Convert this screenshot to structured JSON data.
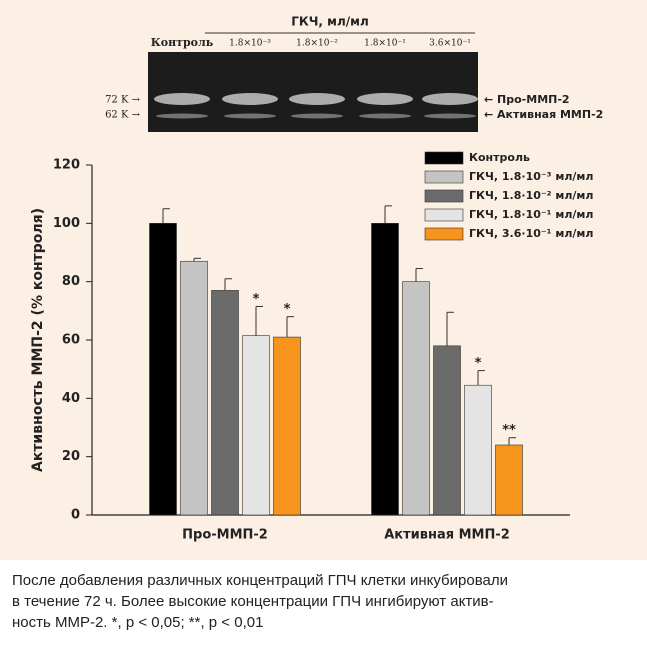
{
  "gel": {
    "title": "ГКЧ, мл/мл",
    "lanes": [
      "Контроль",
      "1.8×10⁻³",
      "1.8×10⁻²",
      "1.8×10⁻¹",
      "3.6×10⁻¹"
    ],
    "markers": [
      "72 K →",
      "62 K →"
    ],
    "bands": [
      "← Про-ММП-2",
      "← Активная ММП-2"
    ]
  },
  "chart_data": {
    "type": "bar",
    "y_label": "Активность ММП-2 (% контроля)",
    "categories": [
      "Про-ММП-2",
      "Активная ММП-2"
    ],
    "series": [
      {
        "name": "Контроль",
        "color": "#000000",
        "values": [
          100,
          100
        ],
        "errors": [
          5,
          6
        ]
      },
      {
        "name": "ГКЧ, 1.8·10⁻³ мл/мл",
        "color": "#c4c4c4",
        "values": [
          87,
          80
        ],
        "errors": [
          1,
          4.5
        ]
      },
      {
        "name": "ГКЧ, 1.8·10⁻² мл/мл",
        "color": "#6b6b6b",
        "values": [
          77,
          58
        ],
        "errors": [
          4,
          11.5
        ]
      },
      {
        "name": "ГКЧ, 1.8·10⁻¹ мл/мл",
        "color": "#e4e4e4",
        "values": [
          61.5,
          44.5
        ],
        "errors": [
          10,
          5
        ],
        "annotations": [
          "*",
          "*"
        ]
      },
      {
        "name": "ГКЧ, 3.6·10⁻¹ мл/мл",
        "color": "#f7941d",
        "values": [
          61,
          24
        ],
        "errors": [
          7,
          2.5
        ],
        "annotations": [
          "*",
          "**"
        ]
      }
    ],
    "ylim": [
      0,
      120
    ],
    "yticks": [
      0,
      20,
      40,
      60,
      80,
      100,
      120
    ],
    "legend": "top-right"
  },
  "caption": {
    "lines": [
      "После добавления различных концентраций ГПЧ клетки инкубировали",
      "в течение 72 ч. Более высокие концентрации ГПЧ ингибируют актив-",
      "ность ММР-2. *, р < 0,05; **, р < 0,01"
    ]
  }
}
